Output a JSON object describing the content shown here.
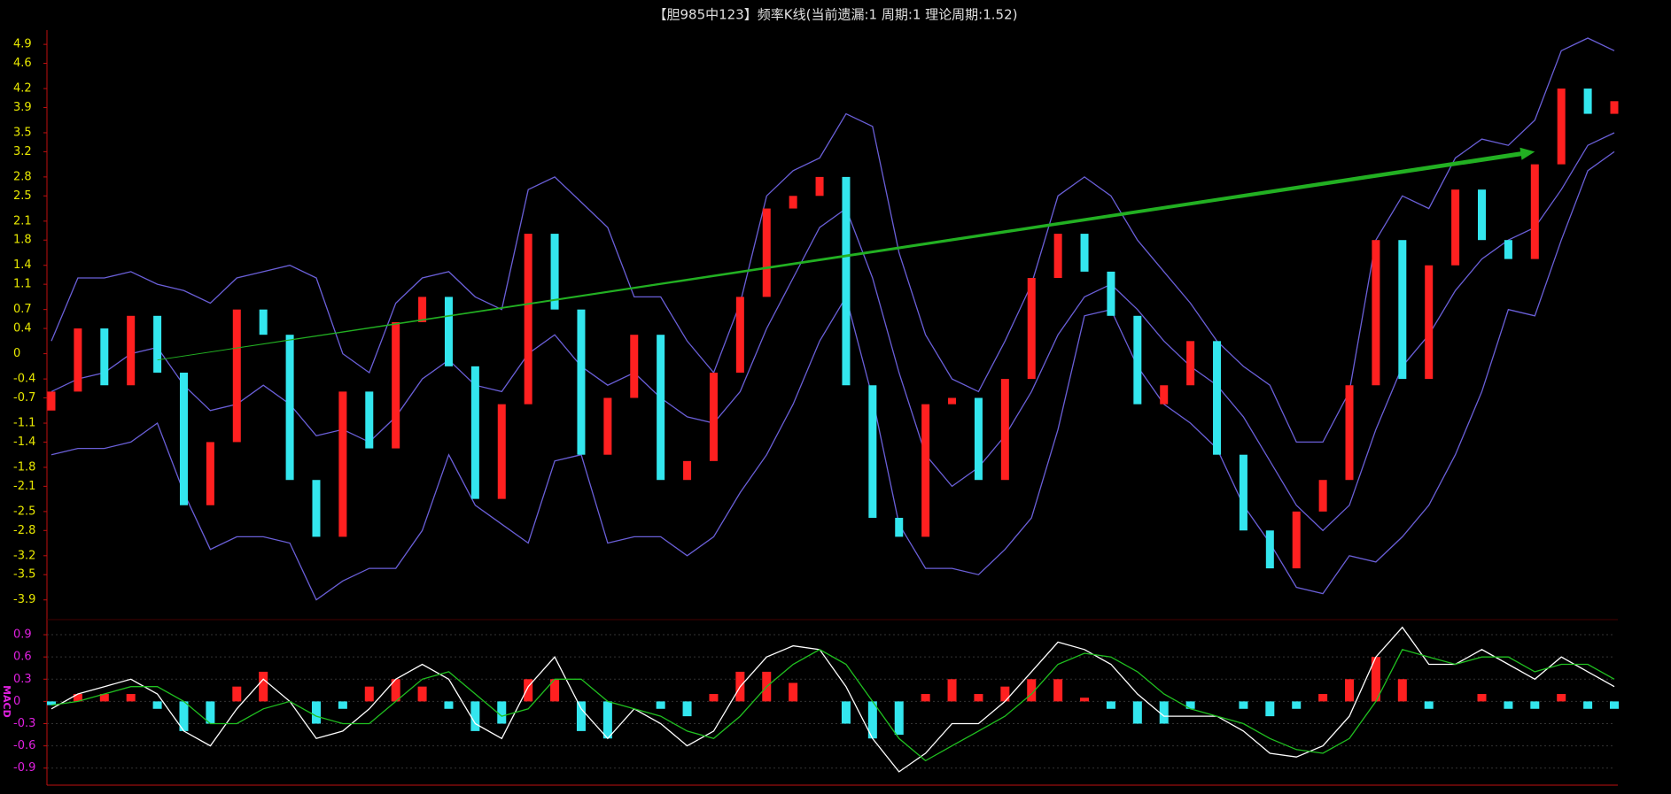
{
  "chart_data": [
    {
      "type": "candlestick",
      "title": "【胆985中123】频率K线(当前遗漏:1 周期:1 理论周期:1.52)",
      "up_color": "#ff2020",
      "down_color": "#33e6ee",
      "open": [
        -0.9,
        -0.6,
        0.4,
        -0.5,
        0.6,
        -0.3,
        -2.4,
        -1.4,
        0.7,
        0.3,
        -2.0,
        -2.9,
        -0.6,
        -1.5,
        0.5,
        0.9,
        -0.2,
        -2.3,
        -0.8,
        1.9,
        0.7,
        -1.6,
        -0.7,
        0.3,
        -2.0,
        -1.7,
        -0.3,
        0.9,
        2.3,
        2.5,
        2.8,
        -0.5,
        -2.6,
        -2.9,
        -0.8,
        -0.7,
        -2.0,
        -0.4,
        1.2,
        1.9,
        1.3,
        0.6,
        -0.8,
        -0.5,
        0.2,
        -1.6,
        -2.8,
        -3.4,
        -2.5,
        -2.0,
        -0.5,
        1.8,
        -0.4,
        1.4,
        2.6,
        1.8,
        1.5,
        3.0,
        4.2,
        3.8
      ],
      "close": [
        -0.6,
        0.4,
        -0.5,
        0.6,
        -0.3,
        -2.4,
        -1.4,
        0.7,
        0.3,
        -2.0,
        -2.9,
        -0.6,
        -1.5,
        0.5,
        0.9,
        -0.2,
        -2.3,
        -0.8,
        1.9,
        0.7,
        -1.6,
        -0.7,
        0.3,
        -2.0,
        -1.7,
        -0.3,
        0.9,
        2.3,
        2.5,
        2.8,
        -0.5,
        -2.6,
        -2.9,
        -0.8,
        -0.7,
        -2.0,
        -0.4,
        1.2,
        1.9,
        1.3,
        0.6,
        -0.8,
        -0.5,
        0.2,
        -1.6,
        -2.8,
        -3.4,
        -2.5,
        -2.0,
        -0.5,
        1.8,
        -0.4,
        1.4,
        2.6,
        1.8,
        1.5,
        3.0,
        4.2,
        3.8,
        4.0
      ],
      "bands": {
        "color": "#6a5fd8",
        "upper": [
          0.2,
          1.2,
          1.2,
          1.3,
          1.1,
          1.0,
          0.8,
          1.2,
          1.3,
          1.4,
          1.2,
          0.0,
          -0.3,
          0.8,
          1.2,
          1.3,
          0.9,
          0.7,
          2.6,
          2.8,
          2.4,
          2.0,
          0.9,
          0.9,
          0.2,
          -0.3,
          0.8,
          2.5,
          2.9,
          3.1,
          3.8,
          3.6,
          1.6,
          0.3,
          -0.4,
          -0.6,
          0.2,
          1.1,
          2.5,
          2.8,
          2.5,
          1.8,
          1.3,
          0.8,
          0.2,
          -0.2,
          -0.5,
          -1.4,
          -1.4,
          -0.6,
          1.8,
          2.5,
          2.3,
          3.1,
          3.4,
          3.3,
          3.7,
          4.8,
          5.0,
          4.8
        ],
        "mid": [
          -0.6,
          -0.4,
          -0.3,
          0.0,
          0.1,
          -0.5,
          -0.9,
          -0.8,
          -0.5,
          -0.8,
          -1.3,
          -1.2,
          -1.4,
          -1.0,
          -0.4,
          -0.1,
          -0.5,
          -0.6,
          0.0,
          0.3,
          -0.2,
          -0.5,
          -0.3,
          -0.7,
          -1.0,
          -1.1,
          -0.6,
          0.4,
          1.2,
          2.0,
          2.3,
          1.2,
          -0.3,
          -1.6,
          -2.1,
          -1.8,
          -1.3,
          -0.6,
          0.3,
          0.9,
          1.1,
          0.7,
          0.2,
          -0.2,
          -0.5,
          -1.0,
          -1.7,
          -2.4,
          -2.8,
          -2.4,
          -1.2,
          -0.2,
          0.3,
          1.0,
          1.5,
          1.8,
          2.0,
          2.6,
          3.3,
          3.5
        ],
        "lower": [
          -1.6,
          -1.5,
          -1.5,
          -1.4,
          -1.1,
          -2.2,
          -3.1,
          -2.9,
          -2.9,
          -3.0,
          -3.9,
          -3.6,
          -3.4,
          -3.4,
          -2.8,
          -1.6,
          -2.4,
          -2.7,
          -3.0,
          -1.7,
          -1.6,
          -3.0,
          -2.9,
          -2.9,
          -3.2,
          -2.9,
          -2.2,
          -1.6,
          -0.8,
          0.2,
          0.9,
          -0.7,
          -2.7,
          -3.4,
          -3.4,
          -3.5,
          -3.1,
          -2.6,
          -1.2,
          0.6,
          0.7,
          -0.2,
          -0.8,
          -1.1,
          -1.5,
          -2.4,
          -3.0,
          -3.7,
          -3.8,
          -3.2,
          -3.3,
          -2.9,
          -2.4,
          -1.6,
          -0.6,
          0.7,
          0.6,
          1.8,
          2.9,
          3.2
        ]
      },
      "arrow": {
        "x": [
          4,
          56
        ],
        "y": [
          -0.1,
          3.2
        ],
        "color": "#22b022"
      },
      "ylim": [
        -4.1,
        5.07
      ],
      "yticks": [
        4.9,
        4.6,
        4.2,
        3.9,
        3.5,
        3.2,
        2.8,
        2.5,
        2.1,
        1.8,
        1.4,
        1.1,
        0.7,
        0.4,
        0,
        -0.4,
        -0.7,
        -1.1,
        -1.4,
        -1.8,
        -2.1,
        -2.5,
        -2.8,
        -3.2,
        -3.5,
        -3.9
      ],
      "tick_color": "#e8e800"
    },
    {
      "type": "macd",
      "label": "MACD",
      "tick_color": "#e020e0",
      "grid": true,
      "dif": {
        "color": "#ffffff",
        "values": [
          -0.1,
          0.1,
          0.2,
          0.3,
          0.1,
          -0.4,
          -0.6,
          -0.1,
          0.3,
          0.0,
          -0.5,
          -0.4,
          -0.1,
          0.3,
          0.5,
          0.3,
          -0.3,
          -0.5,
          0.2,
          0.6,
          -0.1,
          -0.5,
          -0.1,
          -0.3,
          -0.6,
          -0.4,
          0.2,
          0.6,
          0.75,
          0.7,
          0.2,
          -0.5,
          -0.95,
          -0.7,
          -0.3,
          -0.3,
          0.0,
          0.4,
          0.8,
          0.7,
          0.5,
          0.1,
          -0.2,
          -0.2,
          -0.2,
          -0.4,
          -0.7,
          -0.75,
          -0.6,
          -0.2,
          0.6,
          1.0,
          0.5,
          0.5,
          0.7,
          0.5,
          0.3,
          0.6,
          0.4,
          0.2
        ]
      },
      "dea": {
        "color": "#20c020",
        "values": [
          -0.05,
          0.0,
          0.1,
          0.2,
          0.2,
          0.0,
          -0.3,
          -0.3,
          -0.1,
          0.0,
          -0.2,
          -0.3,
          -0.3,
          0.0,
          0.3,
          0.4,
          0.1,
          -0.2,
          -0.1,
          0.3,
          0.3,
          0.0,
          -0.1,
          -0.2,
          -0.4,
          -0.5,
          -0.2,
          0.2,
          0.5,
          0.7,
          0.5,
          0.0,
          -0.5,
          -0.8,
          -0.6,
          -0.4,
          -0.2,
          0.1,
          0.5,
          0.65,
          0.6,
          0.4,
          0.1,
          -0.1,
          -0.2,
          -0.3,
          -0.5,
          -0.65,
          -0.7,
          -0.5,
          0.0,
          0.7,
          0.6,
          0.5,
          0.6,
          0.6,
          0.4,
          0.5,
          0.5,
          0.3
        ]
      },
      "hist": {
        "up_color": "#ff2020",
        "down_color": "#33e6ee",
        "values": [
          -0.05,
          0.1,
          0.1,
          0.1,
          -0.1,
          -0.4,
          -0.3,
          0.2,
          0.4,
          0.0,
          -0.3,
          -0.1,
          0.2,
          0.3,
          0.2,
          -0.1,
          -0.4,
          -0.3,
          0.3,
          0.3,
          -0.4,
          -0.5,
          0.0,
          -0.1,
          -0.2,
          0.1,
          0.4,
          0.4,
          0.25,
          0.0,
          -0.3,
          -0.5,
          -0.45,
          0.1,
          0.3,
          0.1,
          0.2,
          0.3,
          0.3,
          0.05,
          -0.1,
          -0.3,
          -0.3,
          -0.1,
          0.0,
          -0.1,
          -0.2,
          -0.1,
          0.1,
          0.3,
          0.6,
          0.3,
          -0.1,
          0.0,
          0.1,
          -0.1,
          -0.1,
          0.1,
          -0.1,
          -0.1
        ]
      },
      "ylim": [
        -1.13,
        1.02
      ],
      "yticks": [
        0.9,
        0.6,
        0.3,
        0,
        -0.3,
        -0.6,
        -0.9
      ]
    }
  ]
}
